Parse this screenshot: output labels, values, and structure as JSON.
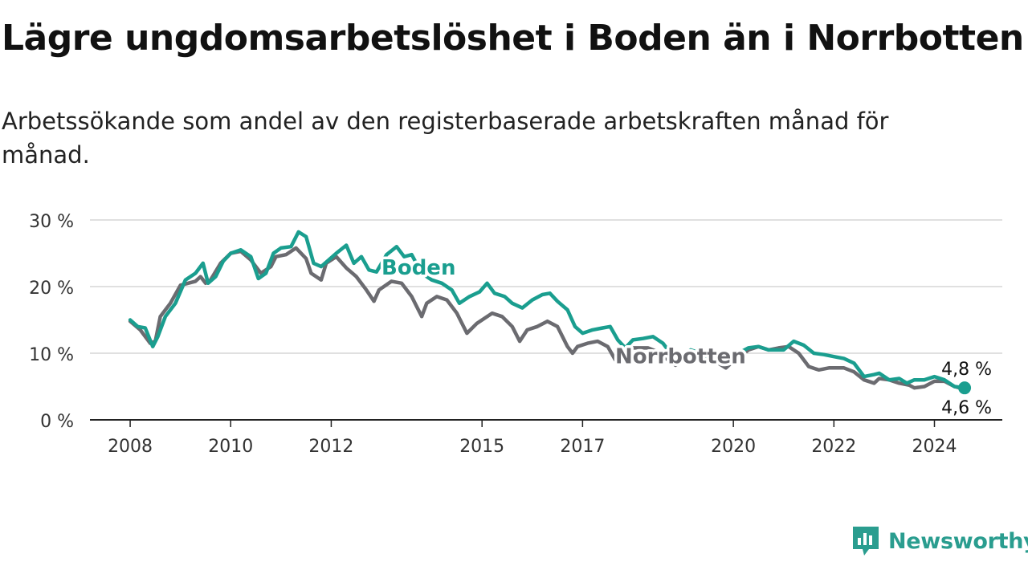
{
  "title": "Lägre ungdomsarbetslöshet i Boden än i Norrbotten",
  "subtitle": "Arbetssökande som andel av den registerbaserade arbetskraften månad för månad.",
  "brand": {
    "name": "Newsworthy",
    "icon": "bar-chart-speech-bubble-icon",
    "color": "#2a9d8f"
  },
  "chart_data": {
    "type": "line",
    "title": "",
    "xlabel": "",
    "ylabel": "",
    "ylim": [
      0,
      30
    ],
    "y_ticks": [
      0,
      10,
      20,
      30
    ],
    "y_tick_labels": [
      "0 %",
      "10 %",
      "20 %",
      "30 %"
    ],
    "x_ticks": [
      2008,
      2010,
      2012,
      2015,
      2017,
      2020,
      2022,
      2024
    ],
    "x_tick_labels": [
      "2008",
      "2010",
      "2012",
      "2015",
      "2017",
      "2020",
      "2022",
      "2024"
    ],
    "grid": true,
    "legend": "inline labels",
    "series": [
      {
        "name": "Norrbotten",
        "color": "#6b6b70",
        "points": [
          [
            2008.0,
            14.8
          ],
          [
            2008.2,
            13.5
          ],
          [
            2008.4,
            11.5
          ],
          [
            2008.5,
            11.8
          ],
          [
            2008.6,
            15.5
          ],
          [
            2008.8,
            17.5
          ],
          [
            2009.0,
            20.2
          ],
          [
            2009.3,
            20.8
          ],
          [
            2009.4,
            21.5
          ],
          [
            2009.5,
            20.5
          ],
          [
            2009.6,
            21.0
          ],
          [
            2009.8,
            23.5
          ],
          [
            2010.0,
            25.0
          ],
          [
            2010.2,
            25.3
          ],
          [
            2010.4,
            24.0
          ],
          [
            2010.6,
            22.0
          ],
          [
            2010.8,
            23.0
          ],
          [
            2010.9,
            24.5
          ],
          [
            2011.1,
            24.8
          ],
          [
            2011.3,
            25.8
          ],
          [
            2011.5,
            24.2
          ],
          [
            2011.6,
            22.0
          ],
          [
            2011.8,
            21.0
          ],
          [
            2011.9,
            23.5
          ],
          [
            2012.1,
            24.5
          ],
          [
            2012.3,
            22.8
          ],
          [
            2012.5,
            21.5
          ],
          [
            2012.7,
            19.5
          ],
          [
            2012.85,
            17.8
          ],
          [
            2012.95,
            19.5
          ],
          [
            2013.2,
            20.8
          ],
          [
            2013.4,
            20.5
          ],
          [
            2013.6,
            18.5
          ],
          [
            2013.8,
            15.5
          ],
          [
            2013.9,
            17.5
          ],
          [
            2014.1,
            18.5
          ],
          [
            2014.3,
            18.0
          ],
          [
            2014.5,
            16.0
          ],
          [
            2014.7,
            13.0
          ],
          [
            2014.9,
            14.5
          ],
          [
            2015.2,
            16.0
          ],
          [
            2015.4,
            15.5
          ],
          [
            2015.6,
            14.0
          ],
          [
            2015.75,
            11.8
          ],
          [
            2015.9,
            13.5
          ],
          [
            2016.1,
            14.0
          ],
          [
            2016.3,
            14.8
          ],
          [
            2016.5,
            14.0
          ],
          [
            2016.7,
            11.0
          ],
          [
            2016.8,
            10.0
          ],
          [
            2016.9,
            11.0
          ],
          [
            2017.1,
            11.5
          ],
          [
            2017.3,
            11.8
          ],
          [
            2017.5,
            11.0
          ],
          [
            2017.65,
            9.0
          ],
          [
            2017.8,
            8.8
          ],
          [
            2018.0,
            10.8
          ],
          [
            2018.3,
            10.8
          ],
          [
            2018.5,
            10.2
          ],
          [
            2018.7,
            9.0
          ],
          [
            2018.85,
            8.2
          ],
          [
            2019.0,
            9.0
          ],
          [
            2019.3,
            9.5
          ],
          [
            2019.5,
            9.5
          ],
          [
            2019.7,
            8.5
          ],
          [
            2019.85,
            7.8
          ],
          [
            2020.0,
            8.8
          ],
          [
            2020.3,
            10.5
          ],
          [
            2020.5,
            11.0
          ],
          [
            2020.7,
            10.5
          ],
          [
            2020.9,
            10.8
          ],
          [
            2021.1,
            11.0
          ],
          [
            2021.3,
            10.0
          ],
          [
            2021.5,
            8.0
          ],
          [
            2021.7,
            7.5
          ],
          [
            2021.9,
            7.8
          ],
          [
            2022.2,
            7.8
          ],
          [
            2022.4,
            7.2
          ],
          [
            2022.6,
            6.0
          ],
          [
            2022.8,
            5.5
          ],
          [
            2022.9,
            6.2
          ],
          [
            2023.1,
            6.0
          ],
          [
            2023.3,
            5.5
          ],
          [
            2023.5,
            5.2
          ],
          [
            2023.6,
            4.8
          ],
          [
            2023.8,
            5.0
          ],
          [
            2024.0,
            5.8
          ],
          [
            2024.2,
            5.8
          ],
          [
            2024.4,
            5.0
          ],
          [
            2024.6,
            4.6
          ]
        ],
        "end_label": "4,6 %"
      },
      {
        "name": "Boden",
        "color": "#1a9e8f",
        "points": [
          [
            2008.0,
            15.0
          ],
          [
            2008.15,
            14.0
          ],
          [
            2008.3,
            13.8
          ],
          [
            2008.45,
            11.0
          ],
          [
            2008.55,
            12.5
          ],
          [
            2008.7,
            15.5
          ],
          [
            2008.9,
            17.5
          ],
          [
            2009.1,
            21.0
          ],
          [
            2009.3,
            22.0
          ],
          [
            2009.45,
            23.5
          ],
          [
            2009.55,
            20.5
          ],
          [
            2009.7,
            21.5
          ],
          [
            2009.85,
            23.8
          ],
          [
            2010.0,
            25.0
          ],
          [
            2010.2,
            25.5
          ],
          [
            2010.4,
            24.5
          ],
          [
            2010.55,
            21.2
          ],
          [
            2010.7,
            22.0
          ],
          [
            2010.85,
            25.0
          ],
          [
            2011.0,
            25.8
          ],
          [
            2011.2,
            26.0
          ],
          [
            2011.35,
            28.2
          ],
          [
            2011.5,
            27.5
          ],
          [
            2011.65,
            23.5
          ],
          [
            2011.8,
            23.0
          ],
          [
            2011.95,
            24.0
          ],
          [
            2012.1,
            25.0
          ],
          [
            2012.3,
            26.2
          ],
          [
            2012.45,
            23.5
          ],
          [
            2012.6,
            24.5
          ],
          [
            2012.75,
            22.5
          ],
          [
            2012.9,
            22.2
          ],
          [
            2013.1,
            24.8
          ],
          [
            2013.3,
            26.0
          ],
          [
            2013.45,
            24.5
          ],
          [
            2013.6,
            24.8
          ],
          [
            2013.8,
            22.0
          ],
          [
            2014.0,
            21.0
          ],
          [
            2014.2,
            20.5
          ],
          [
            2014.4,
            19.5
          ],
          [
            2014.55,
            17.5
          ],
          [
            2014.75,
            18.5
          ],
          [
            2014.95,
            19.2
          ],
          [
            2015.1,
            20.5
          ],
          [
            2015.25,
            19.0
          ],
          [
            2015.45,
            18.5
          ],
          [
            2015.6,
            17.5
          ],
          [
            2015.8,
            16.8
          ],
          [
            2016.0,
            18.0
          ],
          [
            2016.2,
            18.8
          ],
          [
            2016.35,
            19.0
          ],
          [
            2016.5,
            17.8
          ],
          [
            2016.7,
            16.5
          ],
          [
            2016.85,
            14.0
          ],
          [
            2017.0,
            13.0
          ],
          [
            2017.2,
            13.5
          ],
          [
            2017.4,
            13.8
          ],
          [
            2017.55,
            14.0
          ],
          [
            2017.7,
            12.0
          ],
          [
            2017.85,
            10.8
          ],
          [
            2018.0,
            12.0
          ],
          [
            2018.2,
            12.2
          ],
          [
            2018.4,
            12.5
          ],
          [
            2018.6,
            11.5
          ],
          [
            2018.8,
            9.5
          ],
          [
            2018.95,
            9.2
          ],
          [
            2019.15,
            10.5
          ],
          [
            2019.35,
            10.0
          ],
          [
            2019.55,
            9.2
          ],
          [
            2019.7,
            8.8
          ],
          [
            2019.9,
            9.5
          ],
          [
            2020.1,
            10.0
          ],
          [
            2020.3,
            10.8
          ],
          [
            2020.5,
            11.0
          ],
          [
            2020.7,
            10.5
          ],
          [
            2020.9,
            10.5
          ],
          [
            2021.0,
            10.5
          ],
          [
            2021.2,
            11.8
          ],
          [
            2021.4,
            11.2
          ],
          [
            2021.6,
            10.0
          ],
          [
            2021.8,
            9.8
          ],
          [
            2022.0,
            9.5
          ],
          [
            2022.2,
            9.2
          ],
          [
            2022.4,
            8.5
          ],
          [
            2022.6,
            6.5
          ],
          [
            2022.8,
            6.8
          ],
          [
            2022.9,
            7.0
          ],
          [
            2023.1,
            6.0
          ],
          [
            2023.3,
            6.2
          ],
          [
            2023.45,
            5.5
          ],
          [
            2023.6,
            6.0
          ],
          [
            2023.8,
            6.0
          ],
          [
            2024.0,
            6.5
          ],
          [
            2024.2,
            6.0
          ],
          [
            2024.4,
            5.0
          ],
          [
            2024.6,
            4.8
          ]
        ],
        "end_label": "4,8 %"
      }
    ]
  }
}
